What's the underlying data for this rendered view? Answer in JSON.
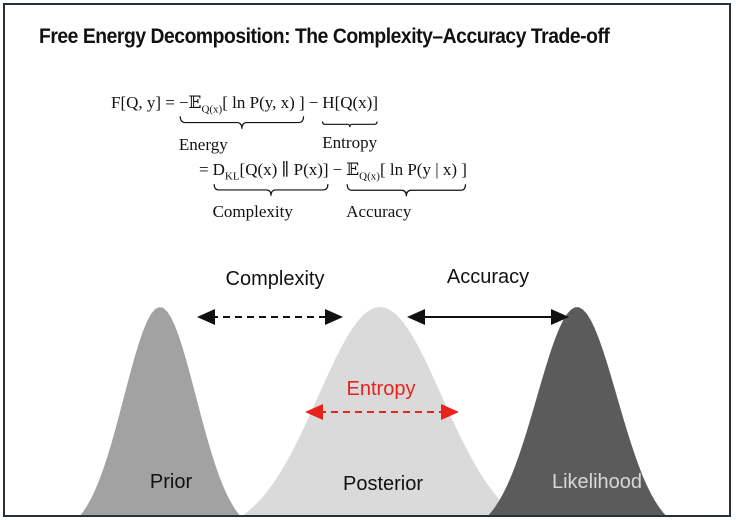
{
  "title": "Free Energy Decomposition: The Complexity–Accuracy Trade-off",
  "equation": {
    "line1": {
      "lhs": "F[Q, y] =",
      "terms": [
        {
          "main": "−𝔼",
          "sub": "Q(x)",
          "rest": "[ ln P(y, x) ]",
          "brace": "Energy"
        },
        {
          "main": "H[Q(x)]",
          "sub": "",
          "rest": "",
          "brace": "Entropy"
        }
      ],
      "op": "−"
    },
    "line2": {
      "lhs": "=",
      "terms": [
        {
          "main": "D",
          "sub": "KL",
          "rest": "[Q(x) ∥ P(x)]",
          "brace": "Complexity"
        },
        {
          "main": "𝔼",
          "sub": "Q(x)",
          "rest": "[ ln P(y | x) ]",
          "brace": "Accuracy"
        }
      ],
      "op": "−"
    }
  },
  "diagram": {
    "arrows": {
      "complexity": "Complexity",
      "accuracy": "Accuracy",
      "entropy": "Entropy"
    },
    "curves": {
      "prior": "Prior",
      "posterior": "Posterior",
      "likelihood": "Likelihood"
    }
  }
}
